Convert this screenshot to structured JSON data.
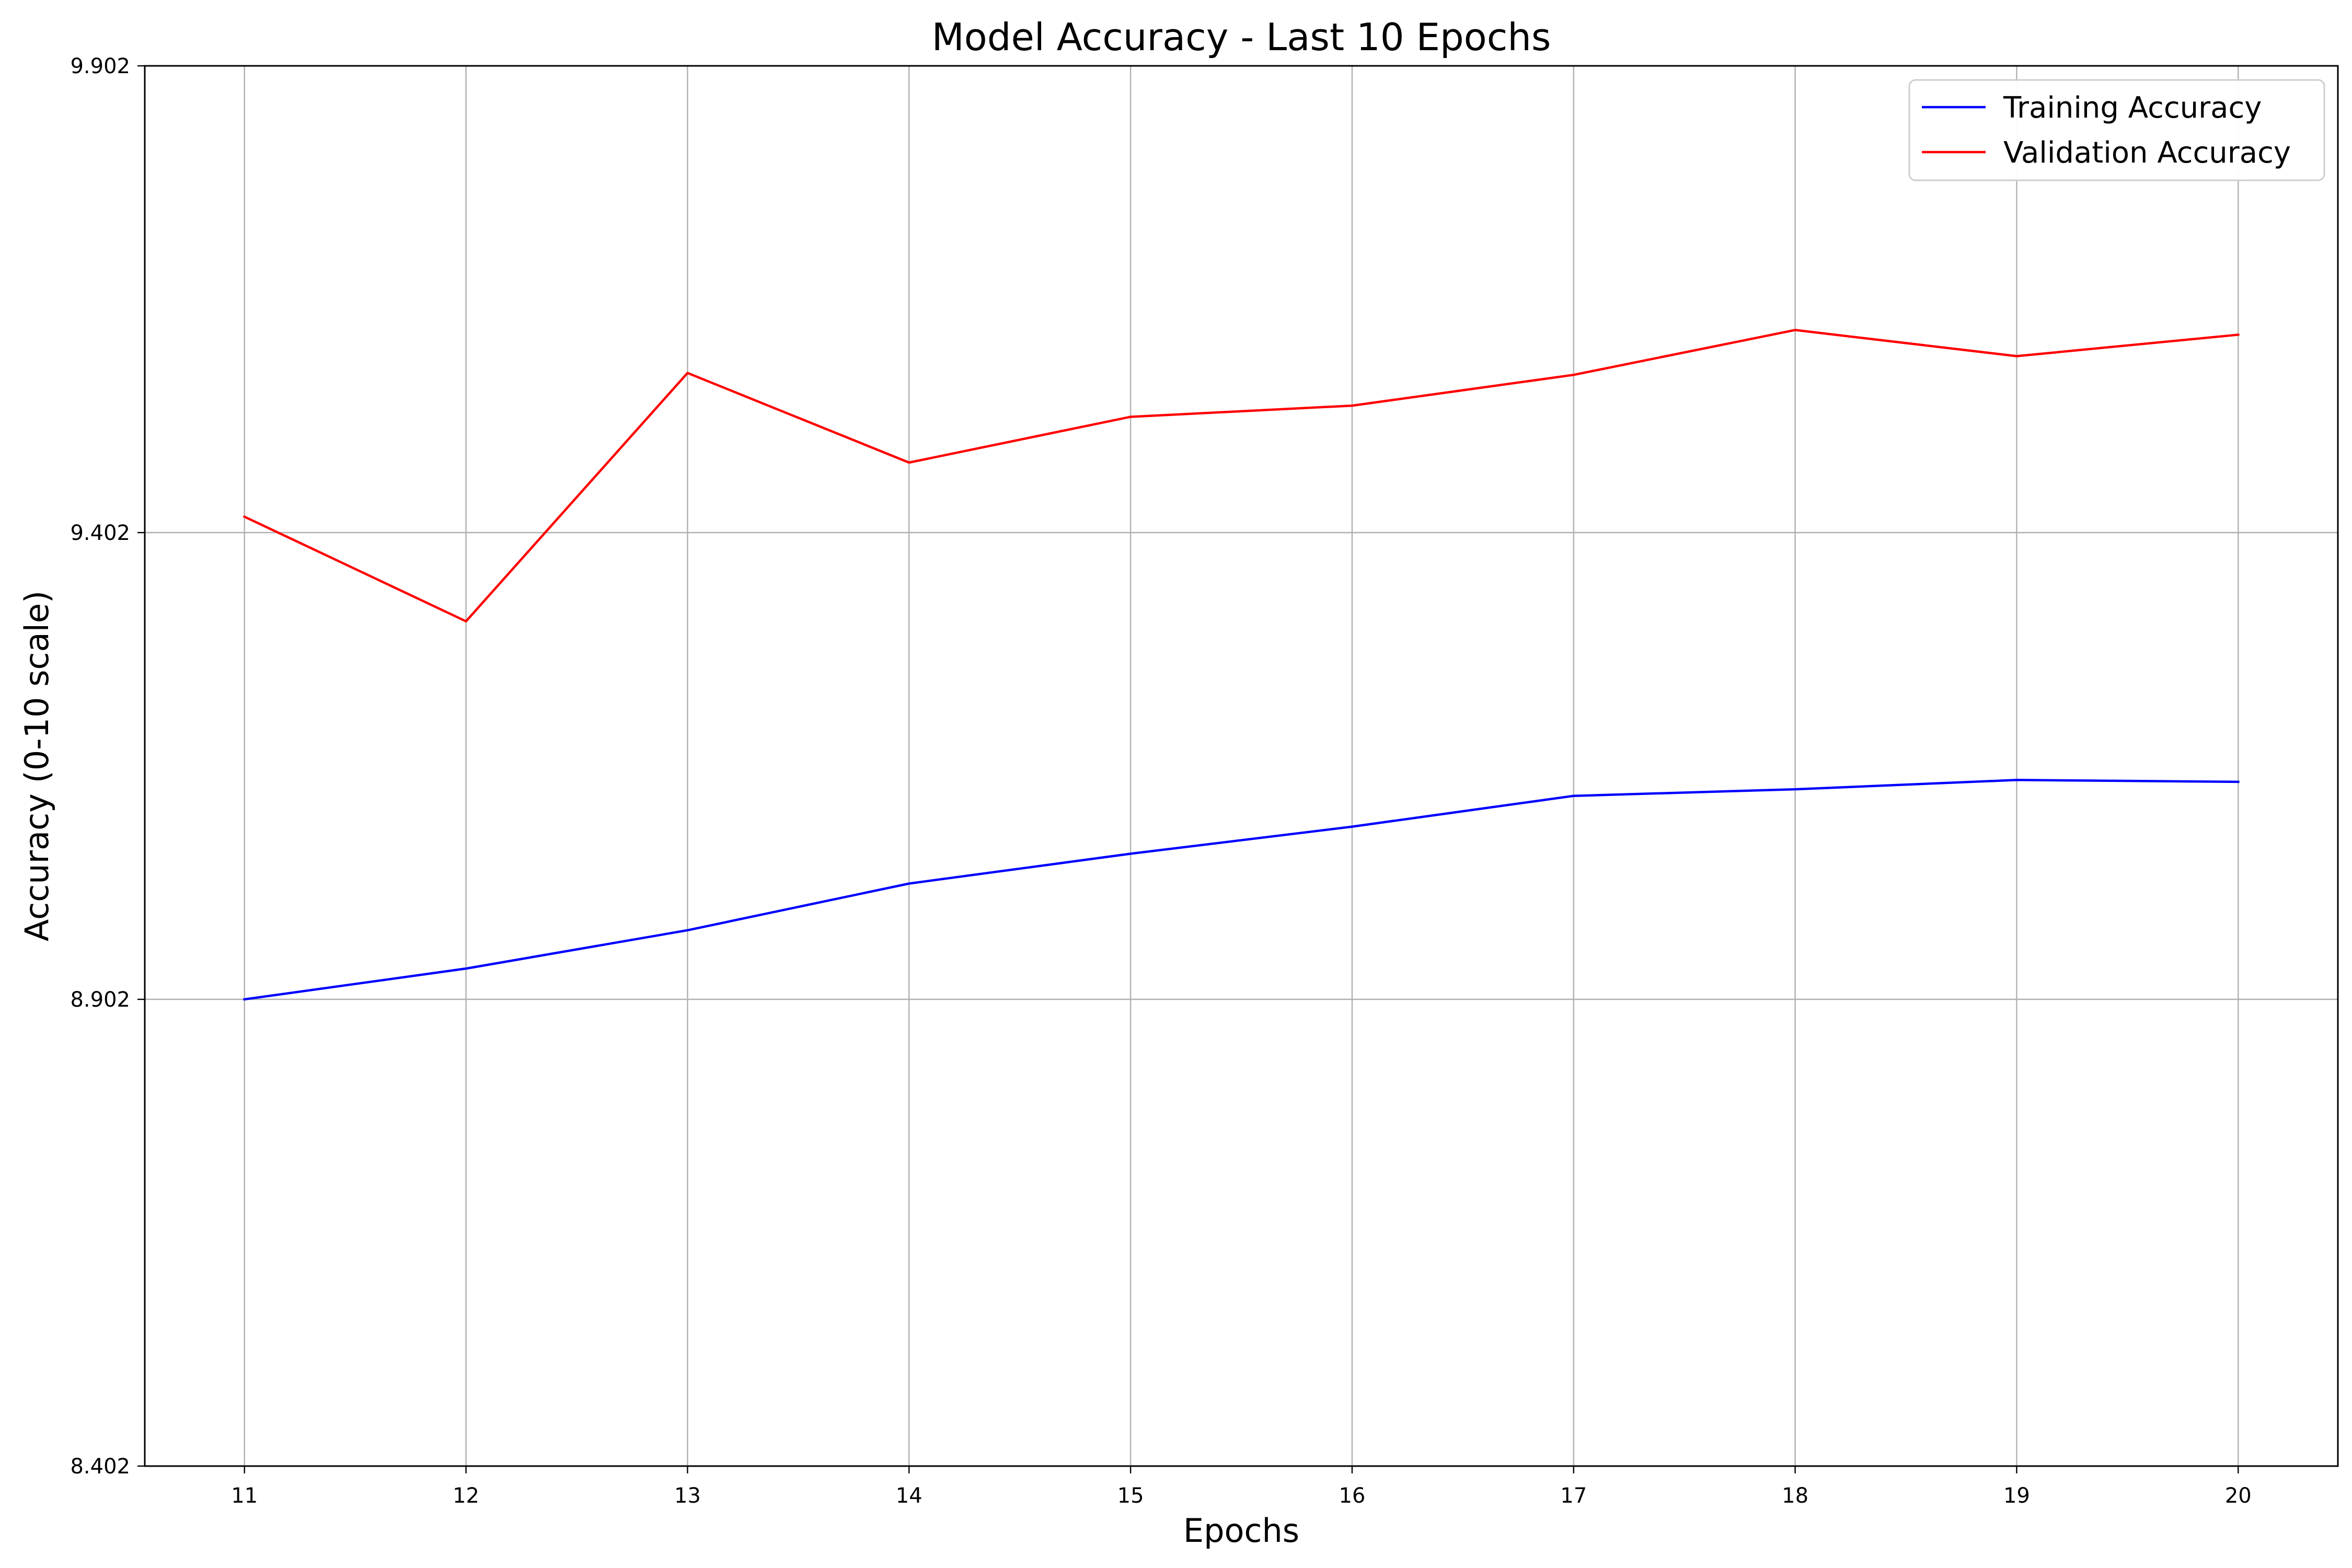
{
  "chart_data": {
    "type": "line",
    "title": "Model Accuracy - Last 10 Epochs",
    "xlabel": "Epochs",
    "ylabel": "Accuracy (0-10 scale)",
    "x": [
      11,
      12,
      13,
      14,
      15,
      16,
      17,
      18,
      19,
      20
    ],
    "x_tick_labels": [
      "11",
      "12",
      "13",
      "14",
      "15",
      "16",
      "17",
      "18",
      "19",
      "20"
    ],
    "xlim": [
      10.55,
      20.45
    ],
    "ylim": [
      8.402,
      9.902
    ],
    "y_ticks": [
      8.402,
      8.902,
      9.402,
      9.902
    ],
    "y_tick_labels": [
      "8.402",
      "8.902",
      "9.402",
      "9.902"
    ],
    "grid": true,
    "legend_position": "top-right",
    "series": [
      {
        "name": "Training Accuracy",
        "color": "#0000ff",
        "values": [
          8.902,
          8.935,
          8.976,
          9.026,
          9.058,
          9.087,
          9.12,
          9.127,
          9.137,
          9.135
        ]
      },
      {
        "name": "Validation Accuracy",
        "color": "#ff0000",
        "values": [
          9.419,
          9.307,
          9.573,
          9.477,
          9.526,
          9.538,
          9.571,
          9.619,
          9.591,
          9.614
        ]
      }
    ]
  }
}
